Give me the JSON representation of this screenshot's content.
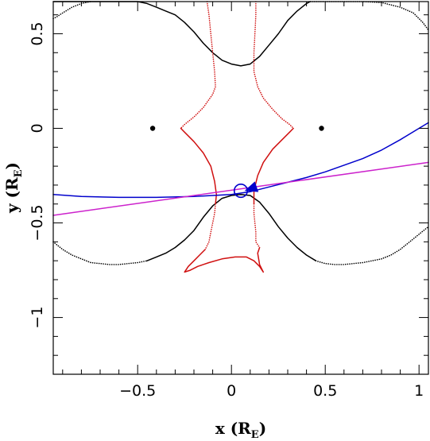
{
  "chart_data": {
    "type": "line",
    "title": "",
    "xlabel": "x (R",
    "xlabel_sub": "E",
    "xlabel_close": ")",
    "ylabel": "y (R",
    "ylabel_sub": "E",
    "ylabel_close": ")",
    "xlim": [
      -0.95,
      1.05
    ],
    "ylim": [
      -1.3,
      0.67
    ],
    "x_major_ticks": [
      -0.5,
      0,
      0.5,
      1
    ],
    "x_tick_labels": [
      "−0.5",
      "0",
      "0.5",
      "1"
    ],
    "y_major_ticks": [
      -1,
      -0.5,
      0,
      0.5
    ],
    "y_tick_labels": [
      "−1",
      "−0.5",
      "0",
      "0.5"
    ],
    "grid": false,
    "colors": {
      "critical_curve": "#000000",
      "caustic": "#d01010",
      "trajectory": "#0000cc",
      "trajectory_alt": "#cc22cc",
      "source": "#0000cc",
      "lens": "#000000"
    },
    "lens_positions": [
      [
        -0.42,
        0.0
      ],
      [
        0.48,
        0.0
      ]
    ],
    "source": {
      "x": 0.05,
      "y": -0.33,
      "radius": 0.035
    },
    "series": [
      {
        "style": "solid",
        "color": "#000000",
        "points": [
          [
            -0.95,
            0.67
          ],
          [
            -0.5,
            0.67
          ],
          [
            -0.45,
            0.66
          ],
          [
            -0.4,
            0.64
          ],
          [
            -0.35,
            0.62
          ],
          [
            -0.3,
            0.6
          ],
          [
            -0.25,
            0.56
          ],
          [
            -0.2,
            0.51
          ],
          [
            -0.15,
            0.45
          ],
          [
            -0.1,
            0.4
          ],
          [
            -0.05,
            0.36
          ],
          [
            0.0,
            0.34
          ],
          [
            0.05,
            0.33
          ],
          [
            0.1,
            0.34
          ],
          [
            0.15,
            0.38
          ],
          [
            0.2,
            0.44
          ],
          [
            0.25,
            0.5
          ],
          [
            0.3,
            0.57
          ],
          [
            0.35,
            0.62
          ],
          [
            0.4,
            0.66
          ],
          [
            0.42,
            0.67
          ]
        ]
      },
      {
        "style": "dotted",
        "color": "#000000",
        "points": [
          [
            0.42,
            0.67
          ],
          [
            0.7,
            0.67
          ],
          [
            0.8,
            0.665
          ],
          [
            0.9,
            0.64
          ],
          [
            0.97,
            0.61
          ],
          [
            1.02,
            0.56
          ],
          [
            1.05,
            0.52
          ]
        ]
      },
      {
        "style": "dotted",
        "color": "#000000",
        "points": [
          [
            -0.95,
            0.58
          ],
          [
            -0.93,
            0.59
          ],
          [
            -0.9,
            0.61
          ],
          [
            -0.85,
            0.64
          ],
          [
            -0.8,
            0.66
          ],
          [
            -0.75,
            0.67
          ]
        ]
      },
      {
        "style": "solid",
        "color": "#000000",
        "points": [
          [
            -0.45,
            -0.7
          ],
          [
            -0.4,
            -0.68
          ],
          [
            -0.35,
            -0.66
          ],
          [
            -0.3,
            -0.63
          ],
          [
            -0.25,
            -0.59
          ],
          [
            -0.2,
            -0.54
          ],
          [
            -0.15,
            -0.47
          ],
          [
            -0.1,
            -0.41
          ],
          [
            -0.05,
            -0.37
          ],
          [
            0.0,
            -0.355
          ],
          [
            0.05,
            -0.35
          ],
          [
            0.1,
            -0.355
          ],
          [
            0.15,
            -0.39
          ],
          [
            0.2,
            -0.45
          ],
          [
            0.25,
            -0.52
          ],
          [
            0.3,
            -0.58
          ],
          [
            0.35,
            -0.63
          ],
          [
            0.4,
            -0.67
          ],
          [
            0.45,
            -0.7
          ]
        ]
      },
      {
        "style": "dotted",
        "color": "#000000",
        "points": [
          [
            -0.95,
            -0.6
          ],
          [
            -0.9,
            -0.64
          ],
          [
            -0.85,
            -0.67
          ],
          [
            -0.8,
            -0.69
          ],
          [
            -0.75,
            -0.71
          ],
          [
            -0.7,
            -0.715
          ],
          [
            -0.65,
            -0.72
          ],
          [
            -0.6,
            -0.72
          ],
          [
            -0.55,
            -0.715
          ],
          [
            -0.5,
            -0.71
          ],
          [
            -0.45,
            -0.7
          ]
        ]
      },
      {
        "style": "dotted",
        "color": "#000000",
        "points": [
          [
            0.45,
            -0.7
          ],
          [
            0.5,
            -0.715
          ],
          [
            0.55,
            -0.72
          ],
          [
            0.6,
            -0.72
          ],
          [
            0.65,
            -0.715
          ],
          [
            0.7,
            -0.71
          ],
          [
            0.75,
            -0.7
          ],
          [
            0.8,
            -0.69
          ],
          [
            0.85,
            -0.67
          ],
          [
            0.9,
            -0.64
          ],
          [
            0.95,
            -0.6
          ],
          [
            1.0,
            -0.56
          ],
          [
            1.05,
            -0.52
          ]
        ]
      },
      {
        "style": "dotted",
        "color": "#d01010",
        "points": [
          [
            -0.13,
            0.67
          ],
          [
            -0.12,
            0.6
          ],
          [
            -0.11,
            0.5
          ],
          [
            -0.1,
            0.4
          ],
          [
            -0.09,
            0.3
          ],
          [
            -0.085,
            0.22
          ],
          [
            -0.1,
            0.18
          ],
          [
            -0.15,
            0.11
          ],
          [
            -0.2,
            0.06
          ],
          [
            -0.25,
            0.02
          ],
          [
            -0.27,
            0.0
          ]
        ]
      },
      {
        "style": "dotted",
        "color": "#d01010",
        "points": [
          [
            0.13,
            0.67
          ],
          [
            0.13,
            0.6
          ],
          [
            0.125,
            0.5
          ],
          [
            0.12,
            0.4
          ],
          [
            0.12,
            0.3
          ],
          [
            0.14,
            0.22
          ],
          [
            0.17,
            0.16
          ],
          [
            0.22,
            0.1
          ],
          [
            0.27,
            0.05
          ],
          [
            0.31,
            0.02
          ],
          [
            0.33,
            0.0
          ]
        ]
      },
      {
        "style": "solid",
        "color": "#d01010",
        "points": [
          [
            -0.27,
            0.0
          ],
          [
            -0.25,
            -0.02
          ],
          [
            -0.2,
            -0.07
          ],
          [
            -0.15,
            -0.13
          ],
          [
            -0.11,
            -0.2
          ],
          [
            -0.09,
            -0.28
          ],
          [
            -0.08,
            -0.35
          ],
          [
            -0.085,
            -0.4
          ]
        ]
      },
      {
        "style": "solid",
        "color": "#d01010",
        "points": [
          [
            0.33,
            0.0
          ],
          [
            0.31,
            -0.02
          ],
          [
            0.27,
            -0.06
          ],
          [
            0.22,
            -0.11
          ],
          [
            0.17,
            -0.18
          ],
          [
            0.14,
            -0.25
          ],
          [
            0.12,
            -0.33
          ],
          [
            0.12,
            -0.4
          ]
        ]
      },
      {
        "style": "dotted",
        "color": "#d01010",
        "points": [
          [
            -0.085,
            -0.4
          ],
          [
            -0.09,
            -0.45
          ],
          [
            -0.1,
            -0.5
          ],
          [
            -0.11,
            -0.55
          ],
          [
            -0.12,
            -0.6
          ],
          [
            -0.14,
            -0.64
          ]
        ]
      },
      {
        "style": "dotted",
        "color": "#d01010",
        "points": [
          [
            0.12,
            -0.4
          ],
          [
            0.12,
            -0.45
          ],
          [
            0.125,
            -0.5
          ],
          [
            0.13,
            -0.55
          ],
          [
            0.13,
            -0.6
          ],
          [
            0.15,
            -0.63
          ]
        ]
      },
      {
        "style": "solid",
        "color": "#d01010",
        "points": [
          [
            -0.14,
            -0.64
          ],
          [
            -0.17,
            -0.67
          ],
          [
            -0.2,
            -0.7
          ],
          [
            -0.23,
            -0.73
          ],
          [
            -0.25,
            -0.76
          ],
          [
            -0.22,
            -0.75
          ],
          [
            -0.18,
            -0.73
          ],
          [
            -0.12,
            -0.71
          ],
          [
            -0.05,
            -0.69
          ],
          [
            0.02,
            -0.68
          ],
          [
            0.08,
            -0.68
          ],
          [
            0.12,
            -0.7
          ],
          [
            0.15,
            -0.73
          ],
          [
            0.17,
            -0.76
          ],
          [
            0.15,
            -0.72
          ],
          [
            0.14,
            -0.66
          ],
          [
            0.15,
            -0.63
          ]
        ]
      },
      {
        "style": "solid",
        "color": "#0000cc",
        "points": [
          [
            -0.95,
            -0.35
          ],
          [
            -0.8,
            -0.36
          ],
          [
            -0.6,
            -0.365
          ],
          [
            -0.4,
            -0.365
          ],
          [
            -0.2,
            -0.36
          ],
          [
            0.0,
            -0.35
          ],
          [
            0.1,
            -0.335
          ],
          [
            0.2,
            -0.31
          ],
          [
            0.3,
            -0.285
          ],
          [
            0.4,
            -0.26
          ],
          [
            0.5,
            -0.23
          ],
          [
            0.6,
            -0.195
          ],
          [
            0.7,
            -0.16
          ],
          [
            0.8,
            -0.115
          ],
          [
            0.9,
            -0.06
          ],
          [
            1.0,
            0.0
          ],
          [
            1.05,
            0.03
          ]
        ]
      },
      {
        "style": "solid",
        "color": "#cc22cc",
        "points": [
          [
            -0.95,
            -0.46
          ],
          [
            1.05,
            -0.18
          ]
        ]
      }
    ],
    "arrows": [
      {
        "color": "#0000cc",
        "tip": [
          0.07,
          -0.33
        ],
        "from": [
          0.13,
          -0.31
        ]
      }
    ]
  }
}
